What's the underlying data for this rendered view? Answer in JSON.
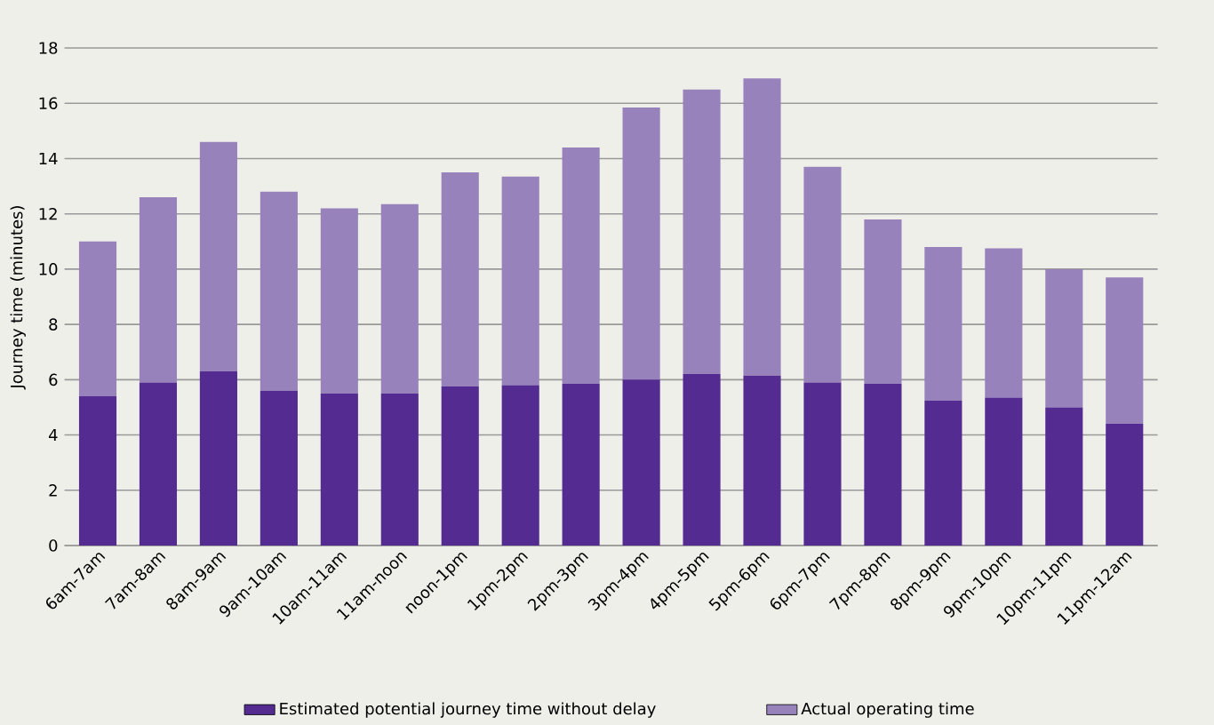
{
  "chart_data": {
    "type": "bar",
    "stacked": true,
    "ylabel": "Journey time (minutes)",
    "categories": [
      "6am-7am",
      "7am-8am",
      "8am-9am",
      "9am-10am",
      "10am-11am",
      "11am-noon",
      "noon-1pm",
      "1pm-2pm",
      "2pm-3pm",
      "3pm-4pm",
      "4pm-5pm",
      "5pm-6pm",
      "6pm-7pm",
      "7pm-8pm",
      "8pm-9pm",
      "9pm-10pm",
      "10pm-11pm",
      "11pm-12am"
    ],
    "series": [
      {
        "name": "Estimated potential journey time without delay",
        "color": "#542c91",
        "values": [
          5.4,
          5.9,
          6.3,
          5.6,
          5.5,
          5.5,
          5.75,
          5.8,
          5.85,
          6.0,
          6.2,
          6.15,
          5.9,
          5.85,
          5.25,
          5.35,
          5.0,
          4.4
        ]
      },
      {
        "name": "Actual operating time",
        "color": "#9882bc",
        "values": [
          5.6,
          6.7,
          8.3,
          7.2,
          6.7,
          6.85,
          7.75,
          7.55,
          8.55,
          9.85,
          10.3,
          10.75,
          7.8,
          5.95,
          5.55,
          5.4,
          5.0,
          5.3
        ]
      }
    ],
    "ylim": [
      0,
      18
    ],
    "yticks": [
      0,
      2,
      4,
      6,
      8,
      10,
      12,
      14,
      16,
      18
    ],
    "grid": "y",
    "legend": "bottom"
  }
}
